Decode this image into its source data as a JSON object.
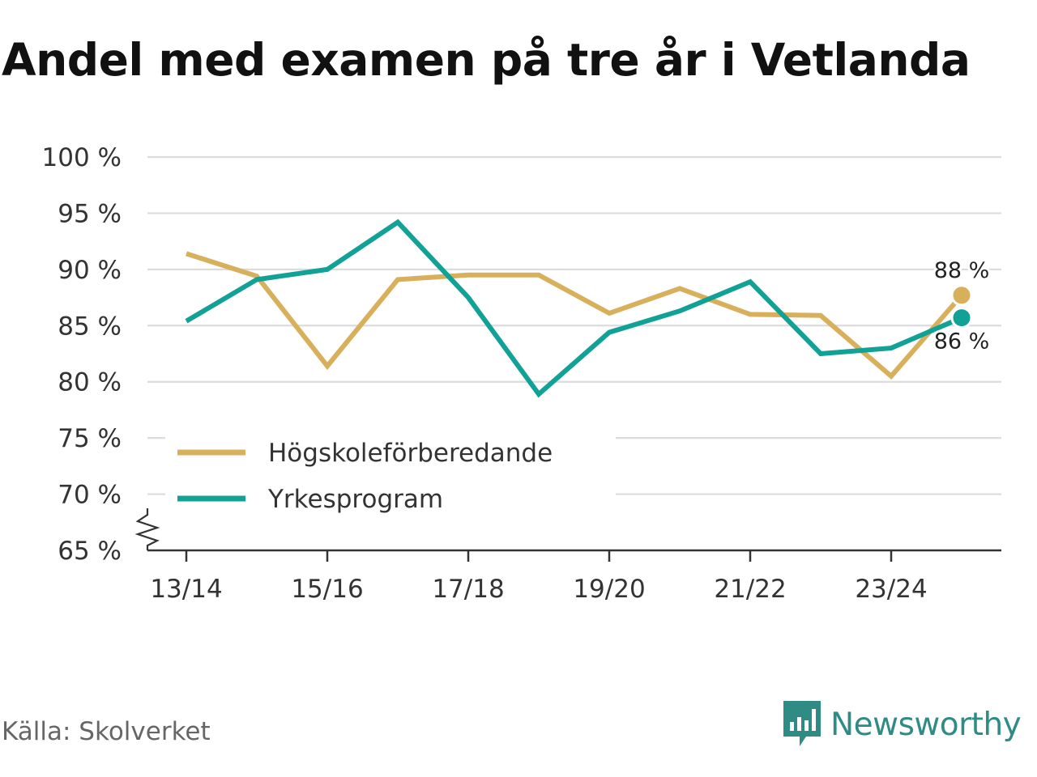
{
  "colors": {
    "hogskole": "#d8b05c",
    "yrke": "#12a196",
    "brand": "#2e8c84"
  },
  "chart_data": {
    "type": "line",
    "title": "Andel med examen på tre år i Vetlanda",
    "categories": [
      "13/14",
      "14/15",
      "15/16",
      "16/17",
      "17/18",
      "18/19",
      "19/20",
      "20/21",
      "21/22",
      "22/23",
      "23/24",
      "24/25"
    ],
    "x_tick_labels": [
      "13/14",
      "15/16",
      "17/18",
      "19/20",
      "21/22",
      "23/24"
    ],
    "y_ticks": [
      65,
      70,
      75,
      80,
      85,
      90,
      95,
      100
    ],
    "y_tick_labels": [
      "65 %",
      "70 %",
      "75 %",
      "80 %",
      "85 %",
      "90 %",
      "95 %",
      "100 %"
    ],
    "ylim": [
      65,
      100
    ],
    "axis_break": true,
    "grid": true,
    "xlabel": "",
    "ylabel": "",
    "series": [
      {
        "name": "Högskoleförberedande",
        "color": "#d8b05c",
        "values": [
          91.4,
          89.4,
          81.4,
          89.1,
          89.5,
          89.5,
          86.1,
          88.3,
          86.0,
          85.9,
          80.5,
          87.7
        ],
        "end_label": "88 %"
      },
      {
        "name": "Yrkesprogram",
        "color": "#12a196",
        "values": [
          85.4,
          89.1,
          90.0,
          94.2,
          87.5,
          78.9,
          84.4,
          86.3,
          88.9,
          82.5,
          83.0,
          85.7
        ],
        "end_label": "86 %"
      }
    ],
    "legend": {
      "position": "bottom-left",
      "entries": [
        "Högskoleförberedande",
        "Yrkesprogram"
      ]
    }
  },
  "footer": {
    "source": "Källa: Skolverket",
    "brand": "Newsworthy"
  }
}
